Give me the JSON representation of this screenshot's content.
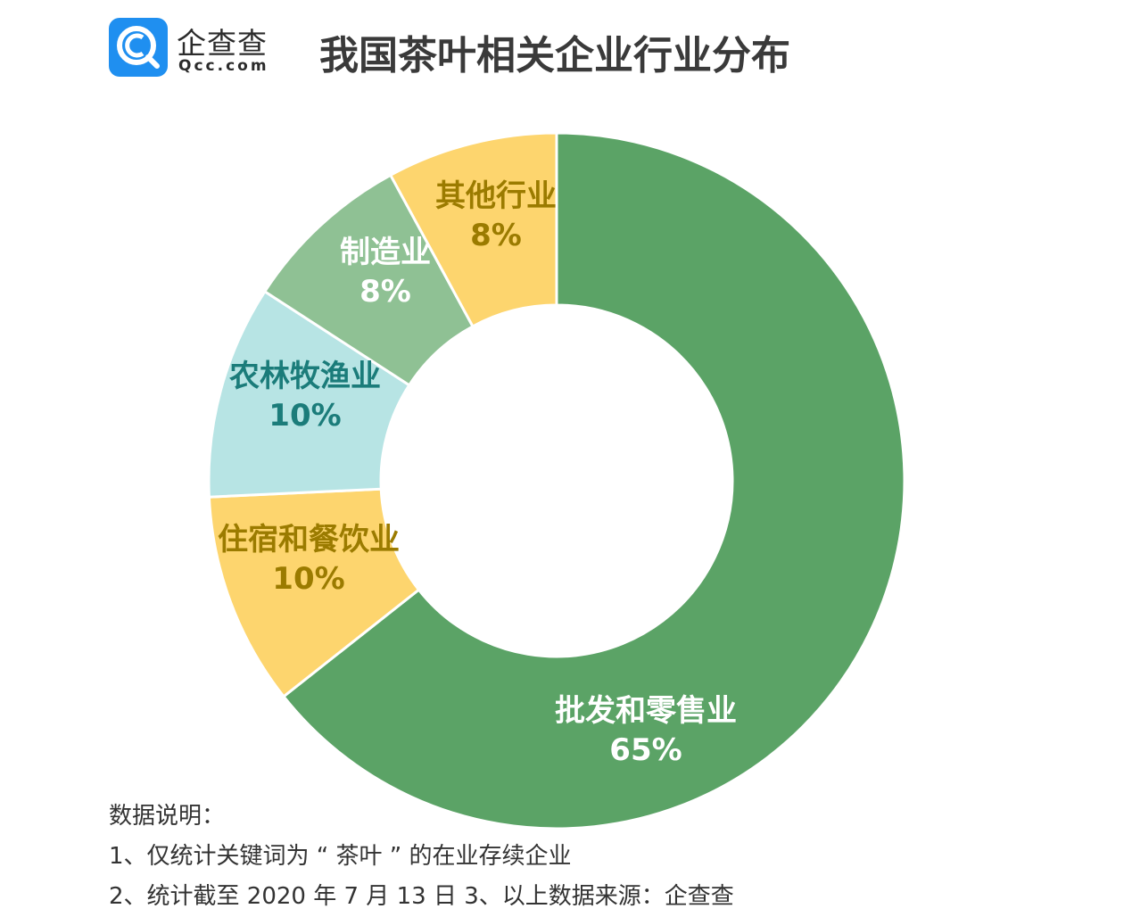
{
  "header": {
    "logo_cn": "企查查",
    "logo_en": "Qcc.com",
    "title": "我国茶叶相关企业行业分布"
  },
  "colors": {
    "wholesale": "#5ba366",
    "hospitality": "#fdd56e",
    "agriculture": "#b7e4e4",
    "manufacturing": "#8fc194",
    "other": "#fdd56e",
    "label_gold": "#9b7b00",
    "label_teal": "#1b7c7a",
    "label_white": "#ffffff",
    "logo_blue": "#1f8ff0"
  },
  "chart_data": {
    "type": "pie",
    "title": "我国茶叶相关企业行业分布",
    "slices": [
      {
        "name": "批发和零售业",
        "percent_label": "65%",
        "value": 65,
        "color": "#5ba366",
        "label_color": "#ffffff"
      },
      {
        "name": "住宿和餐饮业",
        "percent_label": "10%",
        "value": 10,
        "color": "#fdd56e",
        "label_color": "#9b7b00"
      },
      {
        "name": "农林牧渔业",
        "percent_label": "10%",
        "value": 10,
        "color": "#b7e4e4",
        "label_color": "#1b7c7a"
      },
      {
        "name": "制造业",
        "percent_label": "8%",
        "value": 8,
        "color": "#8fc194",
        "label_color": "#ffffff"
      },
      {
        "name": "其他行业",
        "percent_label": "8%",
        "value": 8,
        "color": "#fdd56e",
        "label_color": "#9b7b00"
      }
    ]
  },
  "notes": {
    "heading": "数据说明：",
    "line1": "1、仅统计关键词为 “ 茶叶 ” 的在业存续企业",
    "line2": "2、统计截至 2020 年 7 月 13 日    3、以上数据来源：企查查"
  }
}
